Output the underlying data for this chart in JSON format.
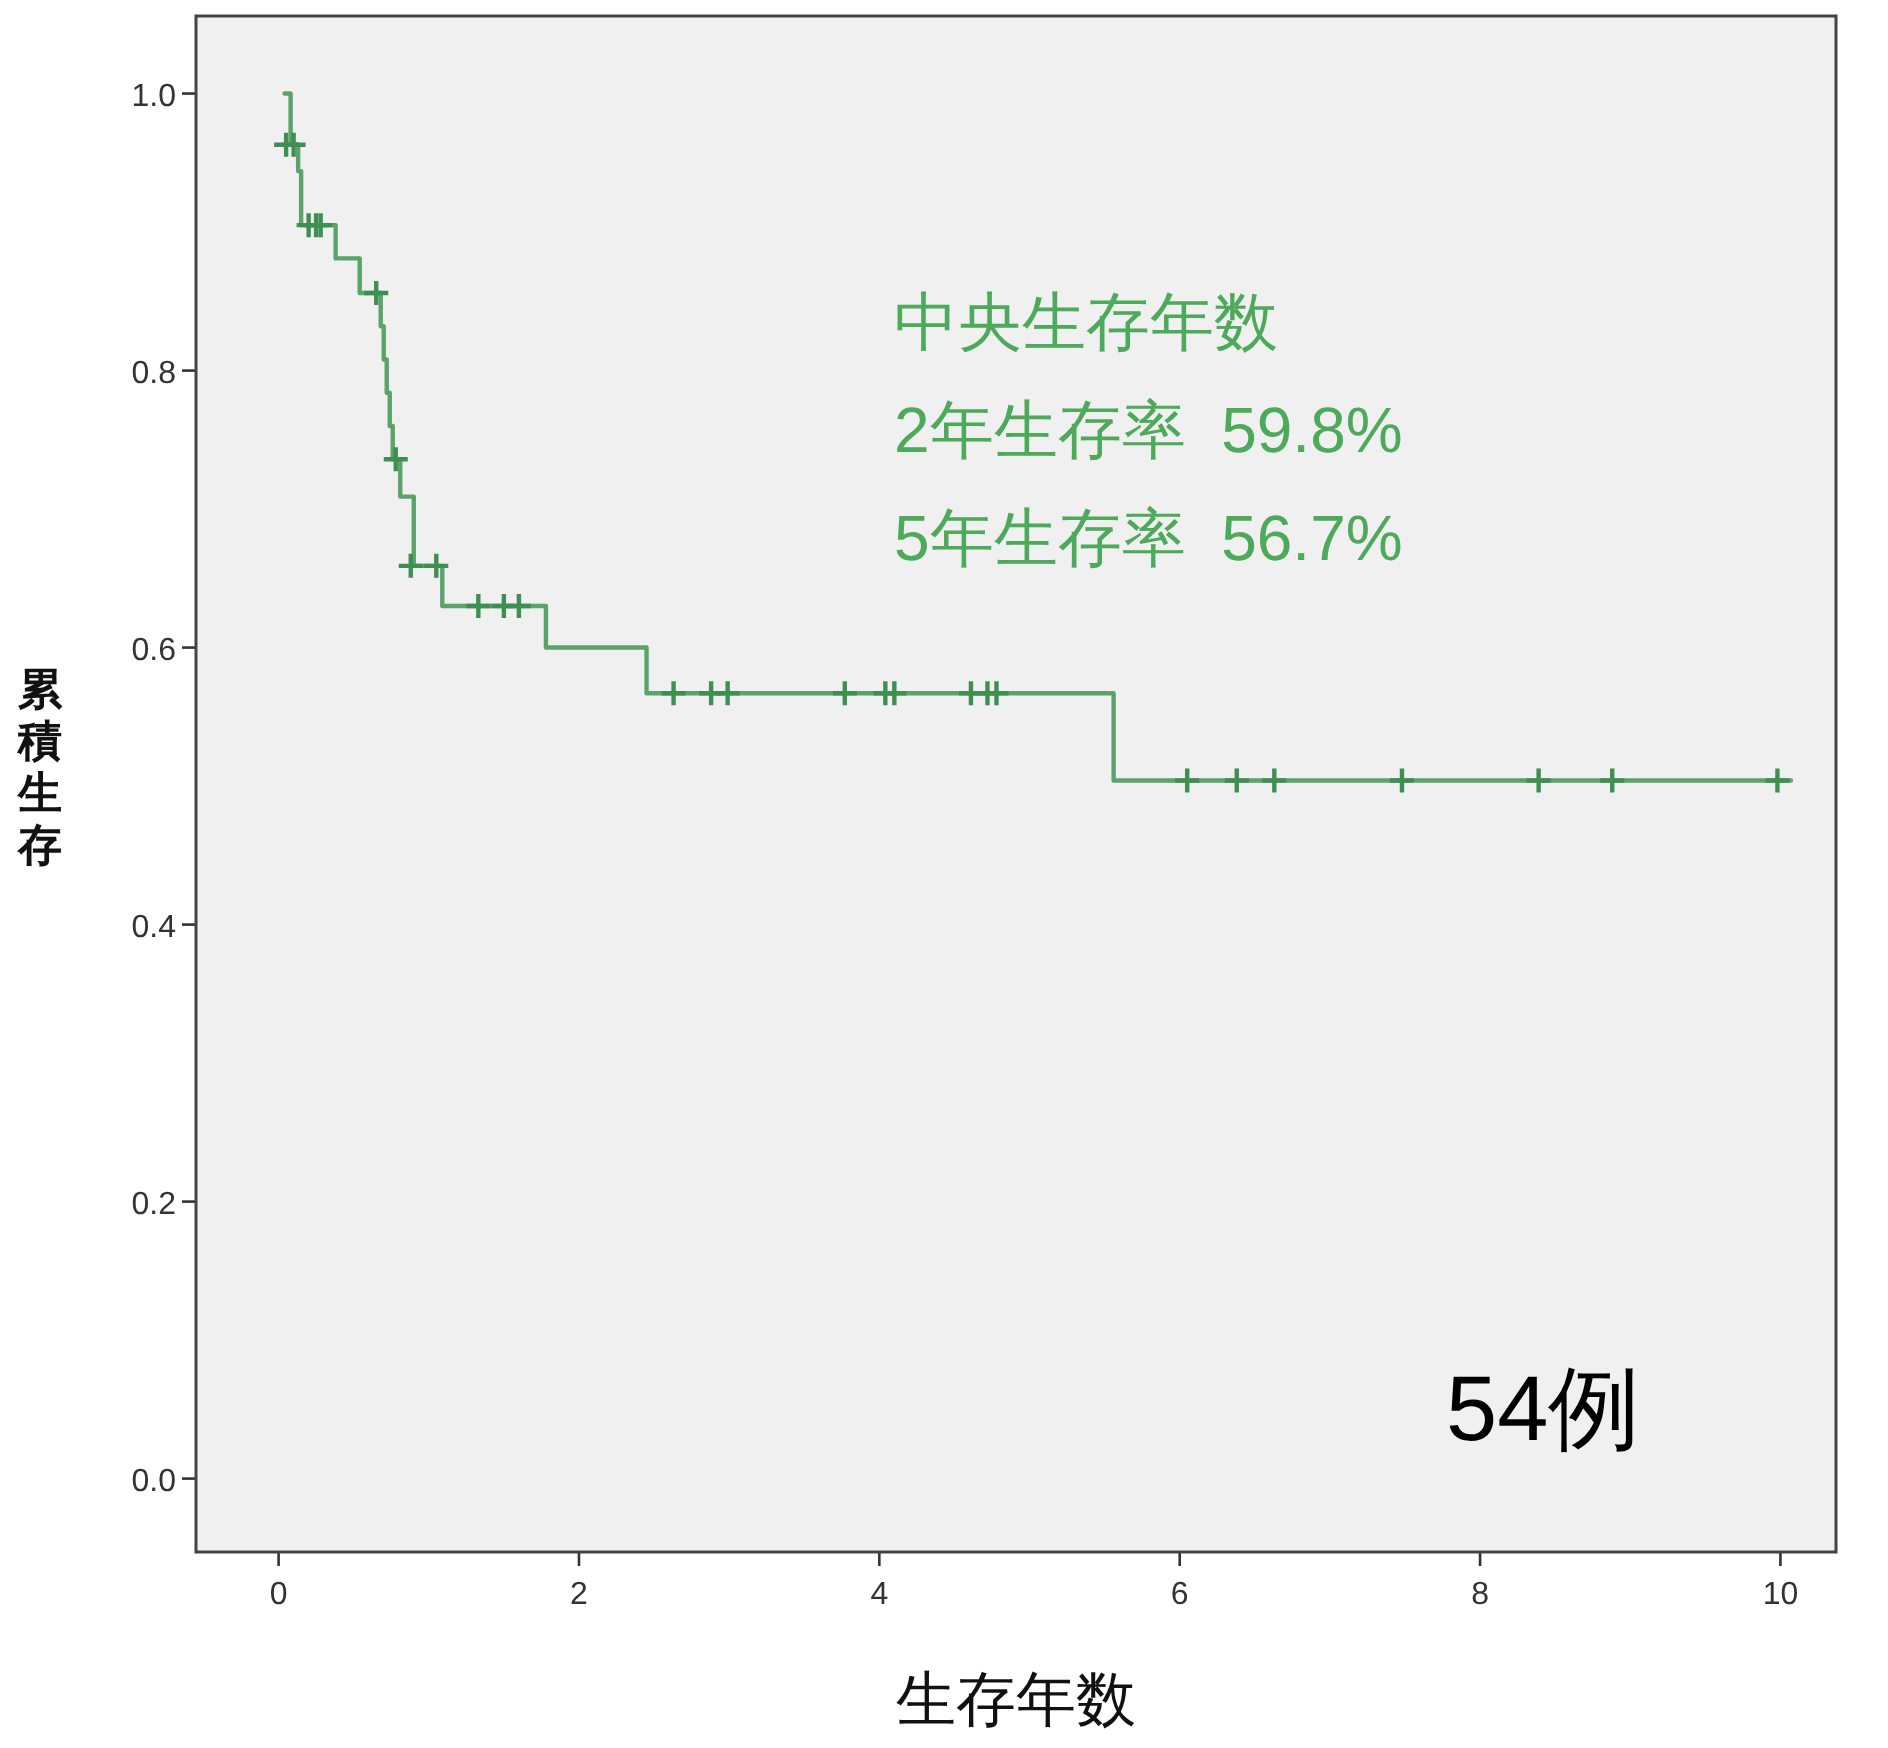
{
  "chart_data": {
    "type": "step",
    "xlabel": "生存年数",
    "ylabel": "累積生存",
    "xlim": [
      -0.55,
      10.37
    ],
    "ylim": [
      -0.053,
      1.056
    ],
    "xticks": [
      0,
      2,
      4,
      6,
      8,
      10
    ],
    "yticks": [
      {
        "value": 0,
        "label": "0.0"
      },
      {
        "value": 0.2,
        "label": "0.2"
      },
      {
        "value": 0.4,
        "label": "0.4"
      },
      {
        "value": 0.6,
        "label": "0.6"
      },
      {
        "value": 0.8,
        "label": "0.8"
      },
      {
        "value": 1,
        "label": "1.0"
      }
    ],
    "annotations": [
      "中央生存年数",
      "2年生存率  59.8%",
      "5年生存率  56.7%",
      "54例"
    ],
    "series": [
      {
        "type": "step",
        "color": "#4a9a5c",
        "x": [
          0.04,
          0.08,
          0.13,
          0.15,
          0.38,
          0.54,
          0.68,
          0.7,
          0.72,
          0.74,
          0.76,
          0.81,
          0.9,
          1.09,
          1.78,
          2.45,
          5.56,
          10.07
        ],
        "values": [
          1.0,
          0.963,
          0.944,
          0.905,
          0.881,
          0.856,
          0.832,
          0.808,
          0.784,
          0.76,
          0.736,
          0.709,
          0.659,
          0.63,
          0.6,
          0.567,
          0.504,
          0.504
        ]
      },
      {
        "type": "scatter",
        "marker": "cross",
        "color": "#3f8f52",
        "x": [
          0.05,
          0.1,
          0.2,
          0.25,
          0.28,
          0.65,
          0.78,
          0.88,
          1.05,
          1.33,
          1.5,
          1.6,
          2.63,
          2.88,
          2.99,
          3.77,
          4.04,
          4.1,
          4.61,
          4.72,
          4.78,
          6.05,
          6.38,
          6.63,
          7.48,
          8.39,
          8.88,
          9.98
        ],
        "values": [
          0.963,
          0.963,
          0.905,
          0.905,
          0.905,
          0.856,
          0.736,
          0.659,
          0.659,
          0.63,
          0.63,
          0.63,
          0.567,
          0.567,
          0.567,
          0.567,
          0.567,
          0.567,
          0.567,
          0.567,
          0.567,
          0.504,
          0.504,
          0.504,
          0.504,
          0.504,
          0.504,
          0.504
        ]
      }
    ]
  }
}
